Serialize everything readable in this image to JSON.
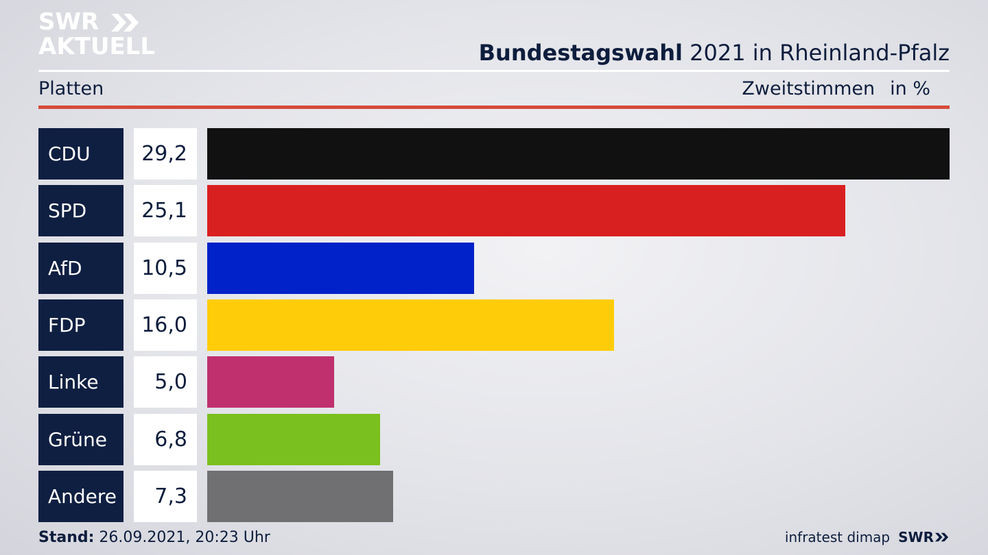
{
  "logo": {
    "line1": "SWR",
    "line2": "AKTUELL",
    "chevron_icon": "double-chevron-icon"
  },
  "header": {
    "title_bold": "Bundestagswahl",
    "title_rest": "2021 in Rheinland-Pfalz"
  },
  "subheader": {
    "left": "Platten",
    "right_label": "Zweitstimmen",
    "right_unit": "in %"
  },
  "chart_data": {
    "type": "bar",
    "orientation": "horizontal",
    "title": "Bundestagswahl 2021 in Rheinland-Pfalz",
    "categories": [
      "CDU",
      "SPD",
      "AfD",
      "FDP",
      "Linke",
      "Grüne",
      "Andere"
    ],
    "values": [
      29.2,
      25.1,
      10.5,
      16.0,
      5.0,
      6.8,
      7.3
    ],
    "value_labels": [
      "29,2",
      "25,1",
      "10,5",
      "16,0",
      "5,0",
      "6,8",
      "7,3"
    ],
    "colors": [
      "#111111",
      "#d92020",
      "#0022c8",
      "#ffcc0a",
      "#c0306f",
      "#7ac01e",
      "#707073"
    ],
    "xlim": [
      0,
      29.2
    ],
    "grid": false,
    "legend": "none"
  },
  "footer": {
    "stand_label": "Stand:",
    "stand_value": "26.09.2021, 20:23 Uhr",
    "source": "infratest dimap",
    "brand": "SWR"
  }
}
